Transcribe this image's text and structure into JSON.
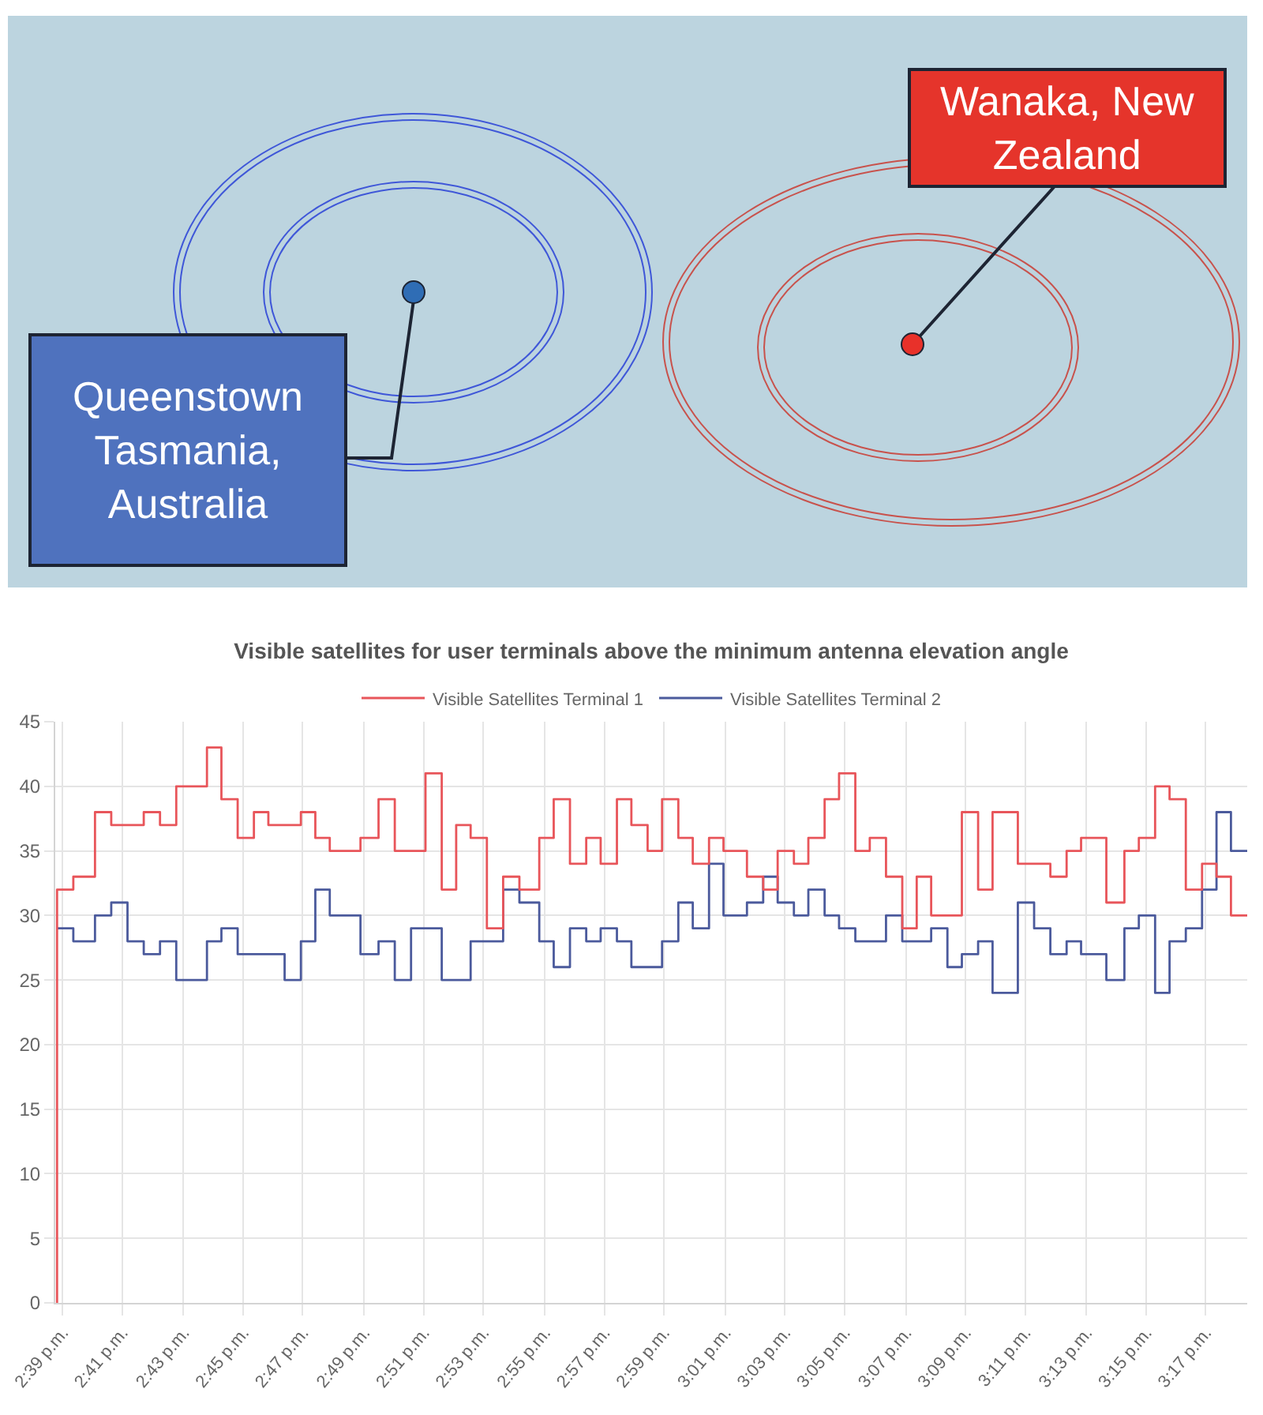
{
  "chart_data": {
    "type": "step",
    "title": "Visible satellites for user terminals above the minimum antenna elevation angle",
    "annotations": [
      "Wanaka, New Zealand",
      "Queenstown Tasmania, Australia"
    ],
    "x": [
      14.647,
      14.656,
      14.668,
      14.677,
      14.686,
      14.695,
      14.704,
      14.713,
      14.73,
      14.738,
      14.747,
      14.756,
      14.764,
      14.773,
      14.782,
      14.79,
      14.798,
      14.815,
      14.825,
      14.834,
      14.843,
      14.851,
      14.86,
      14.868,
      14.876,
      14.885,
      14.894,
      14.903,
      14.914,
      14.922,
      14.931,
      14.94,
      14.948,
      14.957,
      14.965,
      14.974,
      14.982,
      14.991,
      14.999,
      15.008,
      15.016,
      15.029,
      15.038,
      15.046,
      15.055,
      15.063,
      15.072,
      15.08,
      15.089,
      15.097,
      15.106,
      15.115,
      15.123,
      15.131,
      15.14,
      15.148,
      15.157,
      15.165,
      15.179,
      15.188,
      15.197,
      15.206,
      15.214,
      15.228,
      15.238,
      15.246,
      15.255,
      15.263,
      15.272,
      15.281,
      15.289,
      15.297,
      15.306
    ],
    "series": [
      {
        "name": "Visible Satellites Terminal 1",
        "color": "#e8555a",
        "values": [
          0,
          32,
          33,
          38,
          37,
          37,
          38,
          37,
          40,
          43,
          39,
          36,
          38,
          37,
          37,
          38,
          36,
          35,
          36,
          39,
          35,
          35,
          41,
          32,
          37,
          36,
          29,
          33,
          32,
          36,
          39,
          34,
          36,
          34,
          39,
          37,
          35,
          39,
          36,
          34,
          36,
          35,
          33,
          32,
          35,
          34,
          36,
          39,
          41,
          35,
          36,
          33,
          29,
          33,
          30,
          30,
          38,
          32,
          38,
          34,
          34,
          33,
          35,
          36,
          31,
          35,
          36,
          40,
          39,
          32,
          34,
          33,
          30
        ]
      },
      {
        "name": "Visible Satellites Terminal 2",
        "color": "#4b5a9c",
        "values": [
          29,
          29,
          28,
          30,
          31,
          28,
          27,
          28,
          25,
          28,
          29,
          27,
          27,
          27,
          25,
          28,
          32,
          30,
          27,
          28,
          25,
          29,
          29,
          25,
          25,
          28,
          28,
          32,
          31,
          28,
          26,
          29,
          28,
          29,
          28,
          26,
          26,
          28,
          31,
          29,
          34,
          30,
          31,
          33,
          31,
          30,
          32,
          30,
          29,
          28,
          28,
          30,
          28,
          28,
          29,
          26,
          27,
          28,
          24,
          31,
          29,
          27,
          28,
          27,
          25,
          29,
          30,
          24,
          28,
          29,
          32,
          38,
          35
        ]
      }
    ],
    "xlim": [
      14.646,
      15.306
    ],
    "xticks": [
      {
        "value": 14.65,
        "label": "2:39 p.m."
      },
      {
        "value": 14.683,
        "label": "2:41 p.m."
      },
      {
        "value": 14.717,
        "label": "2:43 p.m."
      },
      {
        "value": 14.75,
        "label": "2:45 p.m."
      },
      {
        "value": 14.783,
        "label": "2:47 p.m."
      },
      {
        "value": 14.817,
        "label": "2:49 p.m."
      },
      {
        "value": 14.85,
        "label": "2:51 p.m."
      },
      {
        "value": 14.883,
        "label": "2:53 p.m."
      },
      {
        "value": 14.917,
        "label": "2:55 p.m."
      },
      {
        "value": 14.95,
        "label": "2:57 p.m."
      },
      {
        "value": 14.983,
        "label": "2:59 p.m."
      },
      {
        "value": 15.017,
        "label": "3:01 p.m."
      },
      {
        "value": 15.05,
        "label": "3:03 p.m."
      },
      {
        "value": 15.083,
        "label": "3:05 p.m."
      },
      {
        "value": 15.117,
        "label": "3:07 p.m."
      },
      {
        "value": 15.15,
        "label": "3:09 p.m."
      },
      {
        "value": 15.183,
        "label": "3:11 p.m."
      },
      {
        "value": 15.217,
        "label": "3:13 p.m."
      },
      {
        "value": 15.25,
        "label": "3:15 p.m."
      },
      {
        "value": 15.283,
        "label": "3:17 p.m."
      }
    ],
    "ylim": [
      0,
      45
    ],
    "yticks": [
      0,
      5,
      10,
      15,
      20,
      25,
      30,
      35,
      40,
      45
    ],
    "grid": true,
    "legend": "top"
  }
}
